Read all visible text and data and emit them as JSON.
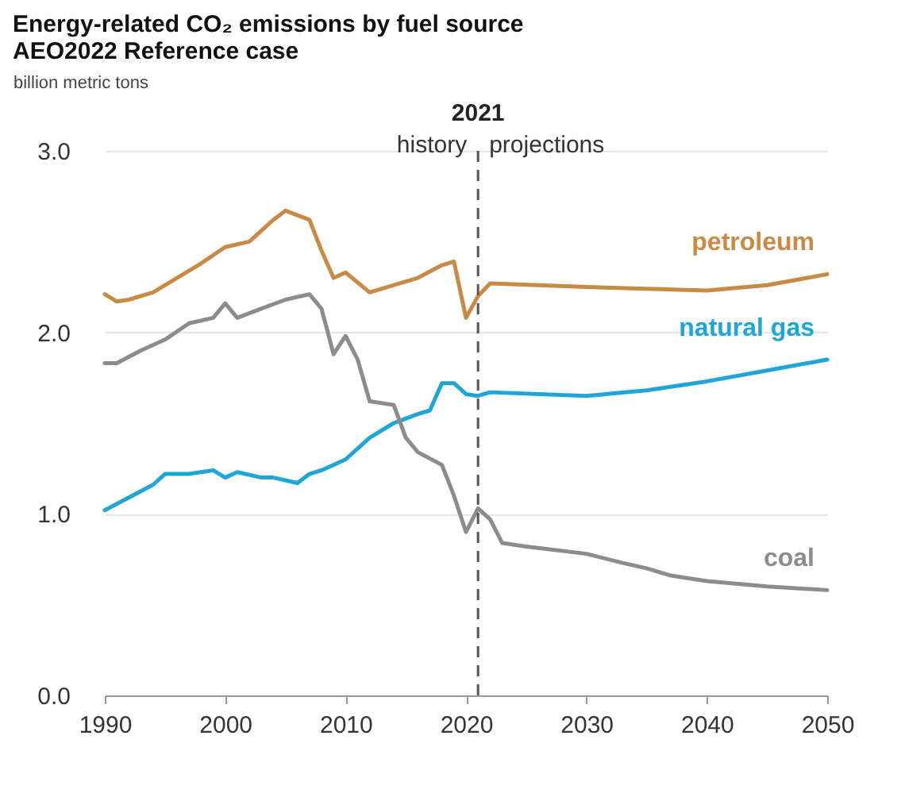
{
  "chart_data": {
    "type": "line",
    "title": "Energy-related CO₂ emissions by fuel source",
    "subtitle": "AEO2022 Reference case",
    "ylabel": "billion metric tons",
    "series": [
      {
        "name": "petroleum",
        "color": "#c98a45",
        "x": [
          1990,
          1991,
          1992,
          1994,
          1996,
          1998,
          2000,
          2002,
          2004,
          2005,
          2007,
          2008,
          2009,
          2010,
          2012,
          2014,
          2016,
          2018,
          2019,
          2020,
          2021,
          2022,
          2030,
          2040,
          2045,
          2050
        ],
        "values": [
          2.21,
          2.17,
          2.18,
          2.22,
          2.3,
          2.38,
          2.47,
          2.5,
          2.62,
          2.67,
          2.62,
          2.45,
          2.3,
          2.33,
          2.22,
          2.26,
          2.3,
          2.37,
          2.39,
          2.08,
          2.2,
          2.27,
          2.25,
          2.23,
          2.26,
          2.32
        ]
      },
      {
        "name": "natural gas",
        "color": "#1ea6d8",
        "x": [
          1990,
          1992,
          1994,
          1995,
          1997,
          1999,
          2000,
          2001,
          2003,
          2004,
          2006,
          2007,
          2008,
          2010,
          2012,
          2014,
          2016,
          2017,
          2018,
          2019,
          2020,
          2021,
          2022,
          2030,
          2035,
          2040,
          2045,
          2050
        ],
        "values": [
          1.02,
          1.09,
          1.16,
          1.22,
          1.22,
          1.24,
          1.2,
          1.23,
          1.2,
          1.2,
          1.17,
          1.22,
          1.24,
          1.3,
          1.42,
          1.5,
          1.55,
          1.57,
          1.72,
          1.72,
          1.66,
          1.65,
          1.67,
          1.65,
          1.68,
          1.73,
          1.79,
          1.85
        ]
      },
      {
        "name": "coal",
        "color": "#8c8c8c",
        "x": [
          1990,
          1991,
          1993,
          1995,
          1997,
          1999,
          2000,
          2001,
          2003,
          2005,
          2007,
          2008,
          2009,
          2010,
          2011,
          2012,
          2014,
          2015,
          2016,
          2018,
          2019,
          2020,
          2021,
          2022,
          2023,
          2025,
          2030,
          2033,
          2035,
          2037,
          2040,
          2045,
          2050
        ],
        "values": [
          1.83,
          1.83,
          1.9,
          1.96,
          2.05,
          2.08,
          2.16,
          2.08,
          2.13,
          2.18,
          2.21,
          2.13,
          1.88,
          1.98,
          1.85,
          1.62,
          1.6,
          1.42,
          1.34,
          1.27,
          1.1,
          0.9,
          1.03,
          0.97,
          0.84,
          0.82,
          0.78,
          0.73,
          0.7,
          0.66,
          0.63,
          0.6,
          0.58
        ]
      }
    ],
    "xlim": [
      1990,
      2050
    ],
    "xticks": [
      1990,
      2000,
      2010,
      2020,
      2030,
      2040,
      2050
    ],
    "ylim": [
      0,
      3
    ],
    "yticks": [
      {
        "value": 0,
        "label": "0.0"
      },
      {
        "value": 1,
        "label": "1.0"
      },
      {
        "value": 2,
        "label": "2.0"
      },
      {
        "value": 3,
        "label": "3.0"
      }
    ],
    "grid": "y",
    "ref_lines": [
      {
        "axis": "x",
        "value": 2021,
        "label": "2021",
        "color": "#555555",
        "line_style": "dashed"
      }
    ],
    "annotations": [
      "history",
      "projections"
    ]
  }
}
